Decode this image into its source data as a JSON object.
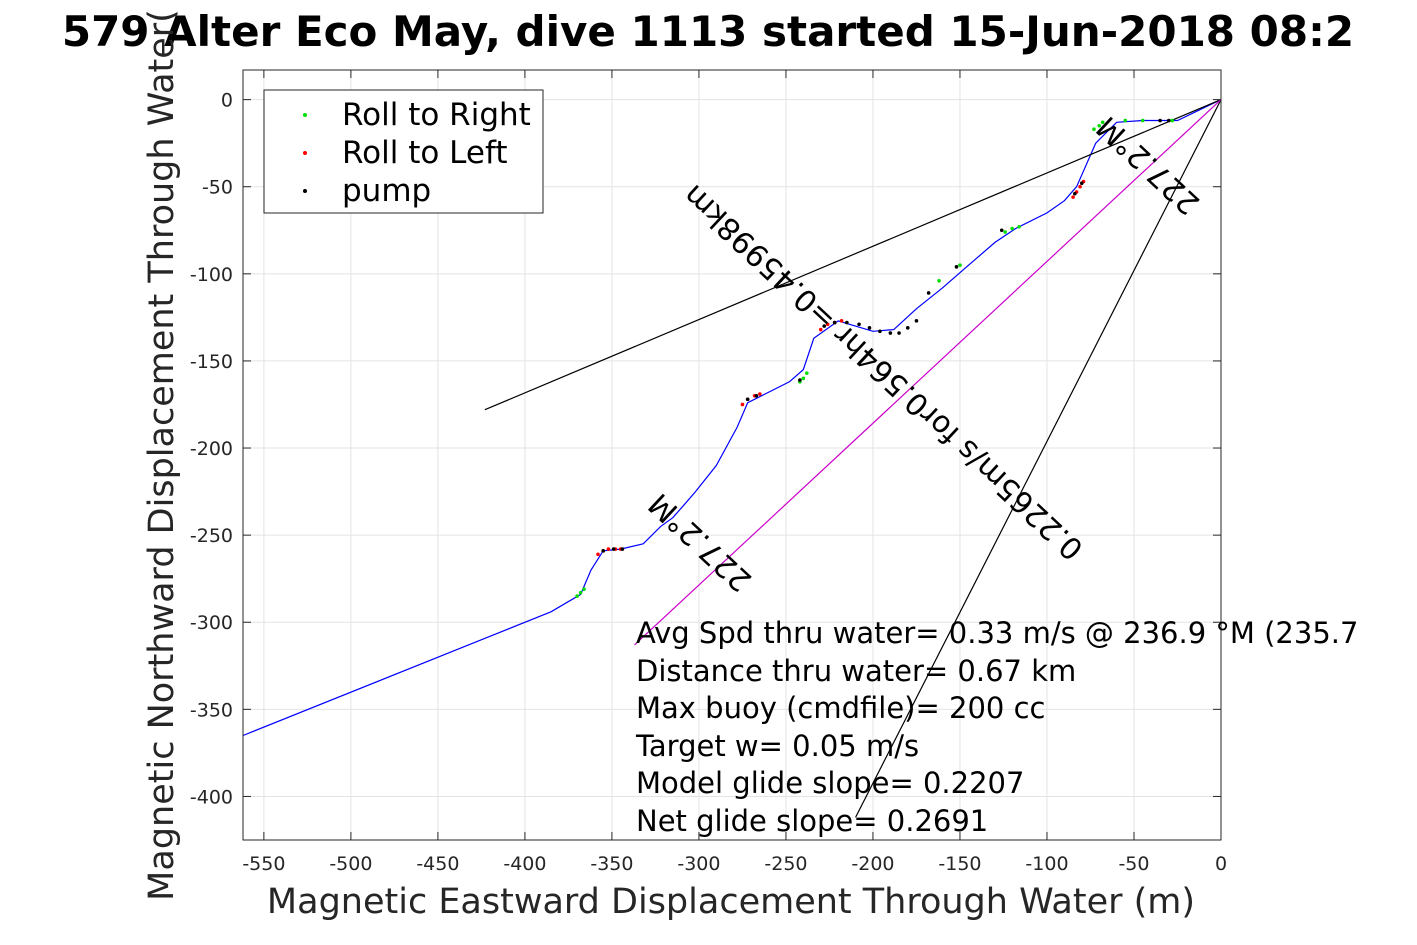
{
  "chart_data": {
    "type": "line",
    "title": "579 Alter Eco May, dive 1113 started 15-Jun-2018 08:2",
    "xlabel": "Magnetic Eastward Displacement Through Water (m)",
    "ylabel": "Magnetic Northward Displacement Through Water(",
    "xlim": [
      -562,
      0
    ],
    "ylim": [
      -425,
      17
    ],
    "xticks": [
      -550,
      -500,
      -450,
      -400,
      -350,
      -300,
      -250,
      -200,
      -150,
      -100,
      -50,
      0
    ],
    "yticks": [
      0,
      -50,
      -100,
      -150,
      -200,
      -250,
      -300,
      -350,
      -400
    ],
    "xtick_labels": [
      "-550",
      "-500",
      "-450",
      "-400",
      "-350",
      "-300",
      "-250",
      "-200",
      "-150",
      "-100",
      "-50",
      "0"
    ],
    "ytick_labels": [
      "0",
      "-50",
      "-100",
      "-150",
      "-200",
      "-250",
      "-300",
      "-350",
      "-400"
    ],
    "grid": true,
    "legend_position": "top-left",
    "legend": [
      {
        "label": "Roll to Right",
        "color": "#00dd00"
      },
      {
        "label": "Roll to Left",
        "color": "#ff0000"
      },
      {
        "label": "pump",
        "color": "#000000"
      }
    ],
    "track": {
      "color": "#0000ff",
      "x": [
        -562,
        -385,
        -368,
        -362,
        -355,
        -345,
        -332,
        -322,
        -315,
        -308,
        -302,
        -290,
        -278,
        -272,
        -262,
        -248,
        -240,
        -234,
        -220,
        -200,
        -188,
        -175,
        -160,
        -145,
        -130,
        -118,
        -100,
        -90,
        -83,
        -72,
        -60,
        -45,
        -25,
        0
      ],
      "y": [
        -365,
        -294,
        -284,
        -270,
        -259,
        -258,
        -255,
        -245,
        -240,
        -232,
        -225,
        -210,
        -188,
        -174,
        -169,
        -162,
        -155,
        -137,
        -127,
        -133,
        -132,
        -120,
        -108,
        -95,
        -82,
        -74,
        -65,
        -58,
        -50,
        -25,
        -13,
        -12,
        -12,
        0
      ]
    },
    "roll_right": {
      "color": "#00dd00",
      "x": [
        -370,
        -368,
        -366,
        -242,
        -240,
        -238,
        -73,
        -70,
        -68,
        -124,
        -120,
        -116,
        -150,
        -162,
        -28,
        -45,
        -55
      ],
      "y": [
        -285,
        -283,
        -281,
        -162,
        -160,
        -157,
        -17,
        -15,
        -13,
        -76,
        -74,
        -73,
        -95,
        -104,
        -12,
        -12,
        -12
      ]
    },
    "roll_left": {
      "color": "#ff0000",
      "x": [
        -358,
        -355,
        -352,
        -348,
        -345,
        -275,
        -272,
        -268,
        -265,
        -230,
        -226,
        -222,
        -218,
        -85,
        -83,
        -81,
        -79
      ],
      "y": [
        -261,
        -259,
        -258,
        -258,
        -258,
        -175,
        -172,
        -170,
        -169,
        -132,
        -129,
        -128,
        -127,
        -56,
        -53,
        -50,
        -47
      ]
    },
    "pump": {
      "color": "#000000",
      "x": [
        -355,
        -349,
        -344,
        -272,
        -267,
        -228,
        -222,
        -215,
        -208,
        -202,
        -196,
        -190,
        -185,
        -180,
        -175,
        -242,
        -84,
        -80,
        -126,
        -152,
        -168,
        -35,
        -30
      ],
      "y": [
        -259,
        -258,
        -258,
        -172,
        -170,
        -130,
        -128,
        -128,
        -129,
        -131,
        -133,
        -134,
        -134,
        -131,
        -127,
        -161,
        -54,
        -48,
        -75,
        -96,
        -111,
        -12,
        -12
      ]
    },
    "lines": [
      {
        "color": "#000000",
        "x": [
          0,
          -423
        ],
        "y": [
          0,
          -178
        ]
      },
      {
        "color": "#000000",
        "x": [
          0,
          -210
        ],
        "y": [
          0,
          -412
        ]
      },
      {
        "color": "#cc00cc",
        "x": [
          0,
          -337
        ],
        "y": [
          0,
          -313
        ]
      }
    ],
    "annotations": [
      "Avg Spd thru water=  0.33 m/s @ 236.9 °M (235.7",
      "Distance thru water=  0.67 km",
      "Max buoy (cmdfile)= 200 cc",
      "Target w= 0.05 m/s",
      "Model glide slope= 0.2207",
      "Net glide slope= 0.2691"
    ],
    "direction_labels": {
      "heading_near_end": "227.2°M",
      "heading_near_start": "227.2°M",
      "speed_line": "0.2265m/s for0.564hr =0.45998km"
    }
  }
}
